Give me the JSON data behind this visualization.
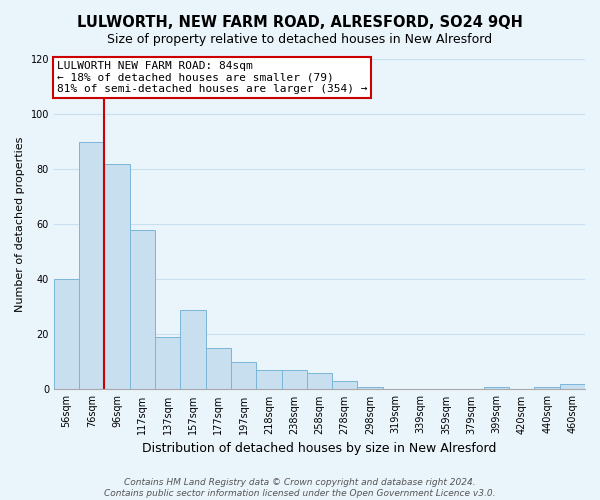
{
  "title": "LULWORTH, NEW FARM ROAD, ALRESFORD, SO24 9QH",
  "subtitle": "Size of property relative to detached houses in New Alresford",
  "xlabel": "Distribution of detached houses by size in New Alresford",
  "ylabel": "Number of detached properties",
  "bar_labels": [
    "56sqm",
    "76sqm",
    "96sqm",
    "117sqm",
    "137sqm",
    "157sqm",
    "177sqm",
    "197sqm",
    "218sqm",
    "238sqm",
    "258sqm",
    "278sqm",
    "298sqm",
    "319sqm",
    "339sqm",
    "359sqm",
    "379sqm",
    "399sqm",
    "420sqm",
    "440sqm",
    "460sqm"
  ],
  "bar_values": [
    40,
    90,
    82,
    58,
    19,
    29,
    15,
    10,
    7,
    7,
    6,
    3,
    1,
    0,
    0,
    0,
    0,
    1,
    0,
    1,
    2
  ],
  "bar_color": "#c8dff0",
  "bar_edge_color": "#7ab5d8",
  "ylim": [
    0,
    120
  ],
  "yticks": [
    0,
    20,
    40,
    60,
    80,
    100,
    120
  ],
  "property_line_label": "LULWORTH NEW FARM ROAD: 84sqm",
  "annotation_line1": "← 18% of detached houses are smaller (79)",
  "annotation_line2": "81% of semi-detached houses are larger (354) →",
  "footer_line1": "Contains HM Land Registry data © Crown copyright and database right 2024.",
  "footer_line2": "Contains public sector information licensed under the Open Government Licence v3.0.",
  "title_fontsize": 10.5,
  "subtitle_fontsize": 9,
  "xlabel_fontsize": 9,
  "ylabel_fontsize": 8,
  "tick_fontsize": 7,
  "annotation_fontsize": 8,
  "footer_fontsize": 6.5,
  "red_line_color": "#cc0000",
  "annotation_box_color": "#ffffff",
  "annotation_box_edge_color": "#cc0000",
  "grid_color": "#c8dff0",
  "background_color": "#eaf4fb",
  "red_line_x": 1.5
}
